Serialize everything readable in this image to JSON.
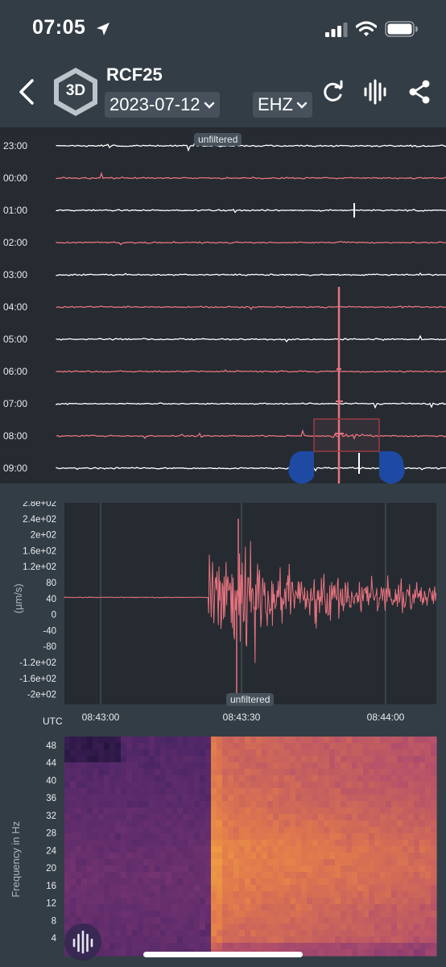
{
  "status_bar": {
    "time": "07:05"
  },
  "header": {
    "badge_label": "3D",
    "station": "RCF25",
    "date": "2023-07-12",
    "channel": "EHZ"
  },
  "helicorder": {
    "filter_label": "unfiltered",
    "hour_labels": [
      "23:00",
      "00:00",
      "01:00",
      "02:00",
      "03:00",
      "04:00",
      "05:00",
      "06:00",
      "07:00",
      "08:00",
      "09:00"
    ],
    "trace_colors": [
      "#ffffff",
      "#e8737f"
    ]
  },
  "chart_data": [
    {
      "type": "line",
      "title": "",
      "filter_label": "unfiltered",
      "ylabel": "(µm/s)",
      "xlabel": "UTC",
      "y_tick_labels": [
        "2.8e+02",
        "2.4e+02",
        "2e+02",
        "1.6e+02",
        "1.2e+02",
        "80",
        "40",
        "0",
        "-40",
        "-80",
        "-1.2e+02",
        "-1.6e+02",
        "-2e+02"
      ],
      "x_tick_labels": [
        "08:43:00",
        "08:43:30",
        "08:44:00"
      ],
      "ylim": [
        -225,
        280
      ],
      "baseline": 43,
      "event_onset": "08:43:28",
      "peak": 240,
      "trough": -215,
      "series_color": "#e8737f",
      "grid": "vertical"
    },
    {
      "type": "heatmap",
      "ylabel": "Frequency in Hz",
      "y_tick_labels": [
        "48",
        "44",
        "40",
        "36",
        "32",
        "28",
        "24",
        "20",
        "16",
        "12",
        "8",
        "4"
      ],
      "ylim": [
        0,
        50
      ],
      "colormap": [
        "#1f1237",
        "#4a2565",
        "#7a3572",
        "#b4506a",
        "#e27a4c",
        "#f6b03c"
      ]
    }
  ]
}
